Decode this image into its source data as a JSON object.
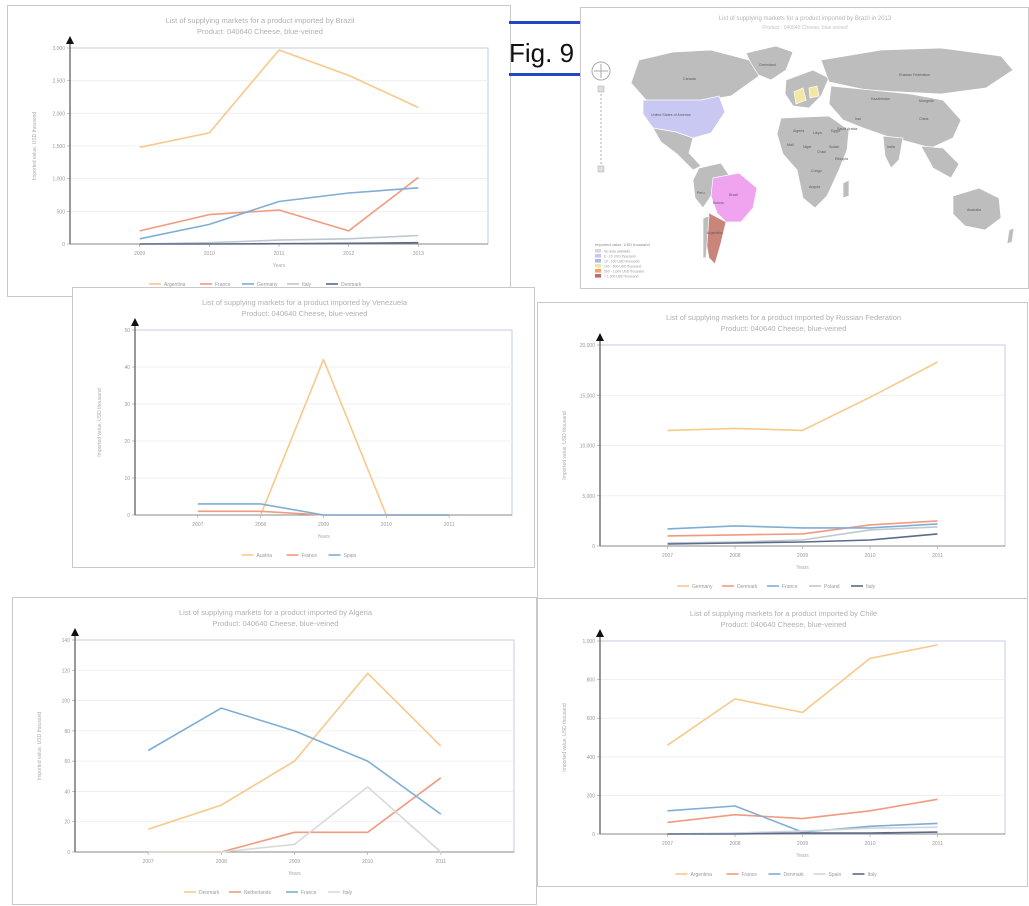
{
  "figure": {
    "label": "Fig. 9",
    "line_color": "#2346c8"
  },
  "chart_data": [
    {
      "id": "brazil",
      "type": "line",
      "title": "List of supplying markets for a product imported by Brazil",
      "subtitle": "Product: 040640 Cheese, blue-veined",
      "xlabel": "Years",
      "ylabel": "Imported value, USD thousand",
      "categories": [
        "2009",
        "2010",
        "2011",
        "2012",
        "2013"
      ],
      "ylim": [
        0,
        3000
      ],
      "yticks": [
        0,
        500,
        1000,
        1500,
        2000,
        2500,
        3000
      ],
      "ytick_labels": [
        "0",
        "500",
        "1,000",
        "1,500",
        "2,000",
        "2,500",
        "3,000"
      ],
      "grid": true,
      "legend_position": "bottom",
      "series": [
        {
          "name": "Argentina",
          "color": "#f7c98a",
          "values": [
            1480,
            1700,
            2970,
            2580,
            2090
          ]
        },
        {
          "name": "France",
          "color": "#f29a80",
          "values": [
            200,
            450,
            520,
            200,
            1020
          ]
        },
        {
          "name": "Germany",
          "color": "#7eaed6",
          "values": [
            80,
            300,
            650,
            780,
            860
          ]
        },
        {
          "name": "Italy",
          "color": "#bfc7cf",
          "values": [
            0,
            20,
            60,
            80,
            130
          ]
        },
        {
          "name": "Denmark",
          "color": "#5a6b8a",
          "values": [
            0,
            0,
            5,
            10,
            20
          ]
        }
      ]
    },
    {
      "id": "venezuela",
      "type": "line",
      "title": "List of supplying markets for a product imported by Venezuela",
      "subtitle": "Product: 040640 Cheese, blue-veined",
      "xlabel": "Years",
      "ylabel": "Imported value, USD thousand",
      "categories": [
        "2007",
        "2008",
        "2009",
        "2010",
        "2011"
      ],
      "ylim": [
        0,
        50
      ],
      "yticks": [
        0,
        10,
        20,
        30,
        40,
        50
      ],
      "ytick_labels": [
        "0",
        "10",
        "20",
        "30",
        "40",
        "50"
      ],
      "grid": true,
      "legend_position": "bottom",
      "series": [
        {
          "name": "Austria",
          "color": "#f7c98a",
          "values": [
            null,
            0,
            42,
            0,
            0
          ]
        },
        {
          "name": "France",
          "color": "#f29a80",
          "values": [
            1,
            1,
            0,
            0,
            0
          ]
        },
        {
          "name": "Spain",
          "color": "#7eaed6",
          "values": [
            3,
            3,
            0,
            0,
            0
          ]
        }
      ]
    },
    {
      "id": "russia",
      "type": "line",
      "title": "List of supplying markets for a product imported by Russian Federation",
      "subtitle": "Product: 040640 Cheese, blue-veined",
      "xlabel": "Years",
      "ylabel": "Imported value, USD thousand",
      "categories": [
        "2007",
        "2008",
        "2009",
        "2010",
        "2011"
      ],
      "ylim": [
        0,
        20000
      ],
      "yticks": [
        0,
        5000,
        10000,
        15000,
        20000
      ],
      "ytick_labels": [
        "0",
        "5,000",
        "10,000",
        "15,000",
        "20,000"
      ],
      "grid": true,
      "legend_position": "bottom",
      "series": [
        {
          "name": "Germany",
          "color": "#f7c98a",
          "values": [
            11500,
            11700,
            11500,
            14800,
            18300
          ]
        },
        {
          "name": "Denmark",
          "color": "#f29a80",
          "values": [
            1000,
            1100,
            1200,
            2100,
            2500
          ]
        },
        {
          "name": "France",
          "color": "#7eaed6",
          "values": [
            1700,
            2000,
            1800,
            1800,
            2200
          ]
        },
        {
          "name": "Poland",
          "color": "#bfc7cf",
          "values": [
            300,
            400,
            600,
            1600,
            1900
          ]
        },
        {
          "name": "Italy",
          "color": "#5a6b8a",
          "values": [
            200,
            300,
            400,
            600,
            1200
          ]
        }
      ]
    },
    {
      "id": "algeria",
      "type": "line",
      "title": "List of supplying markets for a product imported by Algeria",
      "subtitle": "Product: 040640 Cheese, blue-veined",
      "xlabel": "Years",
      "ylabel": "Imported value, USD thousand",
      "categories": [
        "2007",
        "2008",
        "2009",
        "2010",
        "2011"
      ],
      "ylim": [
        0,
        140
      ],
      "yticks": [
        0,
        20,
        40,
        60,
        80,
        100,
        120,
        140
      ],
      "ytick_labels": [
        "0",
        "20",
        "40",
        "60",
        "80",
        "100",
        "120",
        "140"
      ],
      "grid": true,
      "legend_position": "bottom",
      "series": [
        {
          "name": "Denmark",
          "color": "#f7c98a",
          "values": [
            15,
            31,
            60,
            118,
            70
          ]
        },
        {
          "name": "Netherlands",
          "color": "#f29a80",
          "values": [
            0,
            0,
            13,
            13,
            49
          ]
        },
        {
          "name": "France",
          "color": "#7eaed6",
          "values": [
            67,
            95,
            80,
            60,
            25
          ]
        },
        {
          "name": "Italy",
          "color": "#d9d9d9",
          "values": [
            0,
            0,
            5,
            43,
            0
          ]
        }
      ]
    },
    {
      "id": "chile",
      "type": "line",
      "title": "List of supplying markets for a product imported by Chile",
      "subtitle": "Product: 040640 Cheese, blue-veined",
      "xlabel": "Years",
      "ylabel": "Imported value, USD thousand",
      "categories": [
        "2007",
        "2008",
        "2009",
        "2010",
        "2011"
      ],
      "ylim": [
        0,
        1000
      ],
      "yticks": [
        0,
        200,
        400,
        600,
        800,
        1000
      ],
      "ytick_labels": [
        "0",
        "200",
        "400",
        "600",
        "800",
        "1,000"
      ],
      "grid": true,
      "legend_position": "bottom",
      "series": [
        {
          "name": "Argentina",
          "color": "#f7c98a",
          "values": [
            460,
            700,
            630,
            910,
            980
          ]
        },
        {
          "name": "France",
          "color": "#f29a80",
          "values": [
            60,
            100,
            80,
            120,
            180
          ]
        },
        {
          "name": "Denmark",
          "color": "#7eaed6",
          "values": [
            120,
            145,
            10,
            40,
            55
          ]
        },
        {
          "name": "Spain",
          "color": "#cfd6dd",
          "values": [
            0,
            5,
            15,
            30,
            35
          ]
        },
        {
          "name": "Italy",
          "color": "#5a6b8a",
          "values": [
            0,
            0,
            5,
            5,
            10
          ]
        }
      ]
    }
  ],
  "map": {
    "title": "List of supplying markets for a product imported by Brazil in 2013",
    "subtitle": "Product : 040640 Cheese, blue-veined",
    "labels": [
      "Canada",
      "United States of America",
      "Russian Federation",
      "Kazakhstan",
      "Mongolia",
      "China",
      "India",
      "Brazil",
      "Australia",
      "Algeria",
      "Libya",
      "Egypt",
      "Mali",
      "Niger",
      "Chad",
      "Sudan",
      "Ethiopia",
      "Congo",
      "Angola",
      "Peru",
      "Bolivia",
      "Argentina",
      "Iran",
      "Saudi Arabia",
      "Greenland"
    ],
    "legend_title": "Imported value, USD thousand",
    "legend": [
      {
        "label": "No data available",
        "color": "#d8d8d8"
      },
      {
        "label": "0 - 10 USD thousand",
        "color": "#c9c6f2"
      },
      {
        "label": "10 - 100 USD thousand",
        "color": "#aeb8e6"
      },
      {
        "label": "100 - 500 USD thousand",
        "color": "#f3e7a3"
      },
      {
        "label": "500 - 1,000 USD thousand",
        "color": "#f2a36b"
      },
      {
        "label": "> 1,000 USD thousand",
        "color": "#c46b6b"
      }
    ],
    "colors": {
      "land": "#bdbdbd",
      "usa": "#c8c8f3",
      "brazil": "#f0a4f0",
      "argentina": "#c9857a",
      "europe_highlight": "#f3e7a3",
      "ocean": "#ffffff"
    }
  }
}
